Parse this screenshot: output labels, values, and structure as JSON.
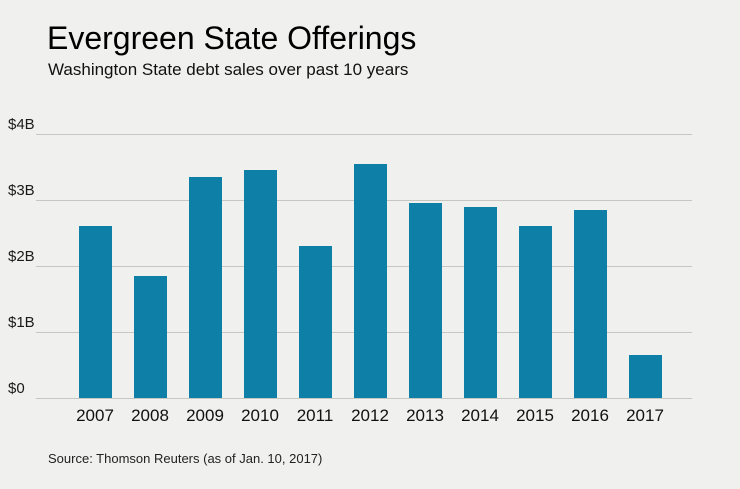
{
  "header": {
    "title": "Evergreen State Offerings",
    "subtitle": "Washington State debt sales over past 10 years"
  },
  "footer": {
    "source": "Source: Thomson Reuters (as of Jan. 10, 2017)"
  },
  "colors": {
    "background": "#f0f0ee",
    "bar": "#0e7fa6",
    "gridline": "#c6c6c3",
    "text": "#111111"
  },
  "chart_data": {
    "type": "bar",
    "title": "Evergreen State Offerings",
    "subtitle": "Washington State debt sales over past 10 years",
    "categories": [
      "2007",
      "2008",
      "2009",
      "2010",
      "2011",
      "2012",
      "2013",
      "2014",
      "2015",
      "2016",
      "2017"
    ],
    "values": [
      2.6,
      1.85,
      3.35,
      3.45,
      2.3,
      3.55,
      2.95,
      2.9,
      2.6,
      2.85,
      0.65
    ],
    "value_unit": "billions USD",
    "xlabel": "",
    "ylabel": "",
    "ylim": [
      0,
      4
    ],
    "yticks": [
      0,
      1,
      2,
      3,
      4
    ],
    "ytick_labels": [
      "$0",
      "$1B",
      "$2B",
      "$3B",
      "$4B"
    ],
    "bar_color": "#0e7fa6",
    "grid": true,
    "legend": "none",
    "source": "Source: Thomson Reuters (as of Jan. 10, 2017)"
  }
}
